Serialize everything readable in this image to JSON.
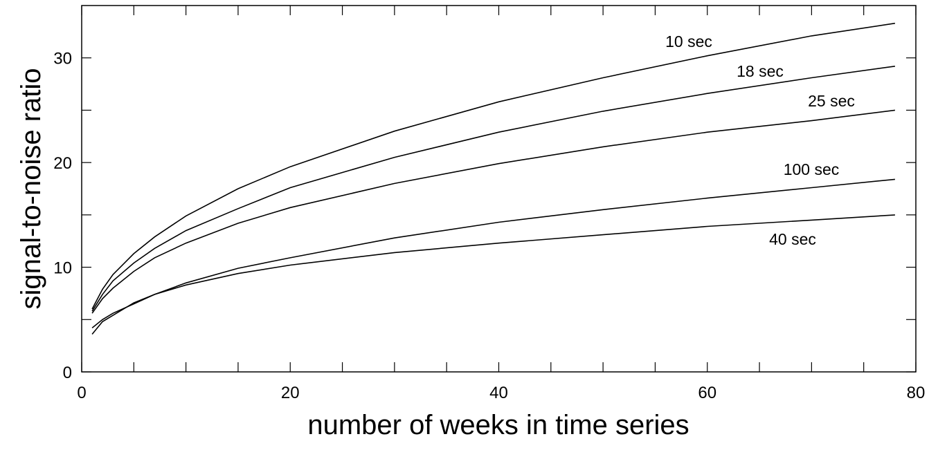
{
  "chart_data": {
    "type": "line",
    "x_label": "number of weeks in time series",
    "y_label": "signal-to-noise ratio",
    "x": [
      1,
      2,
      3,
      5,
      7,
      10,
      15,
      20,
      30,
      40,
      50,
      60,
      70,
      78
    ],
    "series": [
      {
        "name": "10 sec",
        "color": "#000000",
        "values": [
          6.0,
          7.9,
          9.3,
          11.3,
          12.9,
          14.9,
          17.5,
          19.6,
          23.0,
          25.8,
          28.1,
          30.2,
          32.1,
          33.3
        ]
      },
      {
        "name": "18 sec",
        "color": "#000000",
        "values": [
          5.8,
          7.4,
          8.7,
          10.4,
          11.8,
          13.5,
          15.6,
          17.6,
          20.5,
          22.9,
          24.9,
          26.6,
          28.1,
          29.2
        ]
      },
      {
        "name": "25 sec",
        "color": "#000000",
        "values": [
          5.6,
          7.0,
          8.0,
          9.6,
          10.9,
          12.3,
          14.2,
          15.7,
          18.0,
          19.9,
          21.5,
          22.9,
          24.0,
          25.0
        ]
      },
      {
        "name": "100 sec",
        "color": "#000000",
        "values": [
          4.2,
          5.0,
          5.6,
          6.5,
          7.4,
          8.5,
          9.9,
          10.9,
          12.8,
          14.3,
          15.5,
          16.6,
          17.6,
          18.4
        ]
      },
      {
        "name": "40 sec",
        "color": "#000000",
        "values": [
          3.6,
          4.8,
          5.4,
          6.6,
          7.4,
          8.3,
          9.4,
          10.2,
          11.4,
          12.3,
          13.1,
          13.9,
          14.5,
          15.0
        ]
      }
    ],
    "xlim": [
      0,
      80
    ],
    "xticks": [
      0,
      20,
      40,
      60,
      80
    ],
    "xminorticks": [
      5,
      10,
      15,
      25,
      30,
      35,
      45,
      50,
      55,
      65,
      70,
      75
    ],
    "ylim": [
      0,
      35
    ],
    "yticks": [
      0,
      10,
      20,
      30
    ],
    "yminorticks": [
      5,
      15,
      25
    ],
    "grid": false
  }
}
